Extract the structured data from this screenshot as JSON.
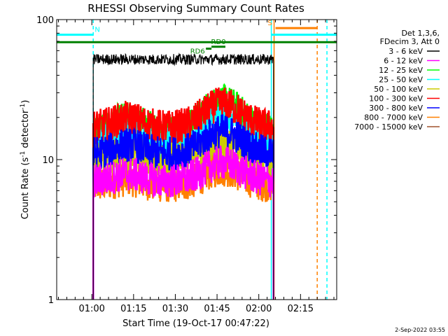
{
  "chart_data": {
    "type": "line",
    "title": "RHESSI Observing Summary Count Rates",
    "xlabel": "Start Time (19-Oct-17 00:47:22)",
    "ylabel_main": "Count Rate (s",
    "ylabel_sup1": "-1",
    "ylabel_mid": " detector",
    "ylabel_sup2": "-1",
    "ylabel_end": ")",
    "yscale": "log",
    "ylim": [
      1,
      100
    ],
    "xlim_min": [
      47.37,
      148
    ],
    "x_tick_values": [
      60,
      75,
      90,
      105,
      120,
      135
    ],
    "x_tick_labels": [
      "01:00",
      "01:15",
      "01:30",
      "01:45",
      "02:00",
      "02:15"
    ],
    "y_tick_values": [
      1,
      10,
      100
    ],
    "y_tick_labels": [
      "1",
      "10",
      "100"
    ],
    "legend_header": [
      "Det 1,3,6,",
      "FDecim 3, Att 0"
    ],
    "legend_position": "right",
    "data_start_min": 60.5,
    "data_end_min": 125.3,
    "series": [
      {
        "name": "3 - 6 keV",
        "color": "#000000",
        "base": 52,
        "peak": 0
      },
      {
        "name": "6 - 12 keV",
        "color": "#ff00ff",
        "base": 7,
        "peak": 2.5
      },
      {
        "name": "12 - 25 keV",
        "color": "#00ff00",
        "base": 16,
        "peak": 10
      },
      {
        "name": "25 - 50 keV",
        "color": "#00ffff",
        "base": 13,
        "peak": 7
      },
      {
        "name": "50 - 100 keV",
        "color": "#cccc00",
        "base": 10,
        "peak": 3
      },
      {
        "name": "100 - 300 keV",
        "color": "#ff0000",
        "base": 17,
        "peak": 8
      },
      {
        "name": "300 - 800 keV",
        "color": "#0000ff",
        "base": 11,
        "peak": 5
      },
      {
        "name": "800 - 7000 keV",
        "color": "#ff8000",
        "base": 6.5,
        "peak": 2
      },
      {
        "name": "7000 - 15000 keV",
        "color": "#a0522d",
        "base": 0,
        "peak": 0
      }
    ],
    "flags": [
      {
        "label": "N",
        "color": "#00ffff",
        "start_min": 47.37,
        "end_min": 60.5,
        "label_at_min": 62,
        "level": 78
      },
      {
        "label": "S",
        "color": "#ff8000",
        "start_min": 126,
        "end_min": 141,
        "label_at_min": 124,
        "level": 87
      },
      {
        "label": "",
        "color": "#00ffff",
        "start_min": 124.5,
        "end_min": 148,
        "label_at_min": 0,
        "level": 78
      },
      {
        "label": "",
        "color": "#008000",
        "start_min": 47.37,
        "end_min": 148,
        "label_at_min": 0,
        "level": 69
      },
      {
        "label": "RD0",
        "color": "#008000",
        "start_min": 103,
        "end_min": 108,
        "label_at_min": 105.5,
        "level": 64
      },
      {
        "label": "RD6",
        "color": "#008000",
        "start_min": 101,
        "end_min": 103,
        "label_at_min": 98,
        "level": 62
      }
    ],
    "vertical_lines": [
      {
        "at_min": 60.5,
        "color": "#00ffff",
        "style": "dashed"
      },
      {
        "at_min": 124.5,
        "color": "#00ffff",
        "style": "solid"
      },
      {
        "at_min": 125.5,
        "color": "#ff8000",
        "style": "solid"
      },
      {
        "at_min": 141,
        "color": "#ff8000",
        "style": "dashed"
      },
      {
        "at_min": 144.5,
        "color": "#00ffff",
        "style": "dashed"
      }
    ],
    "timestamp": "2-Sep-2022 03:55"
  }
}
